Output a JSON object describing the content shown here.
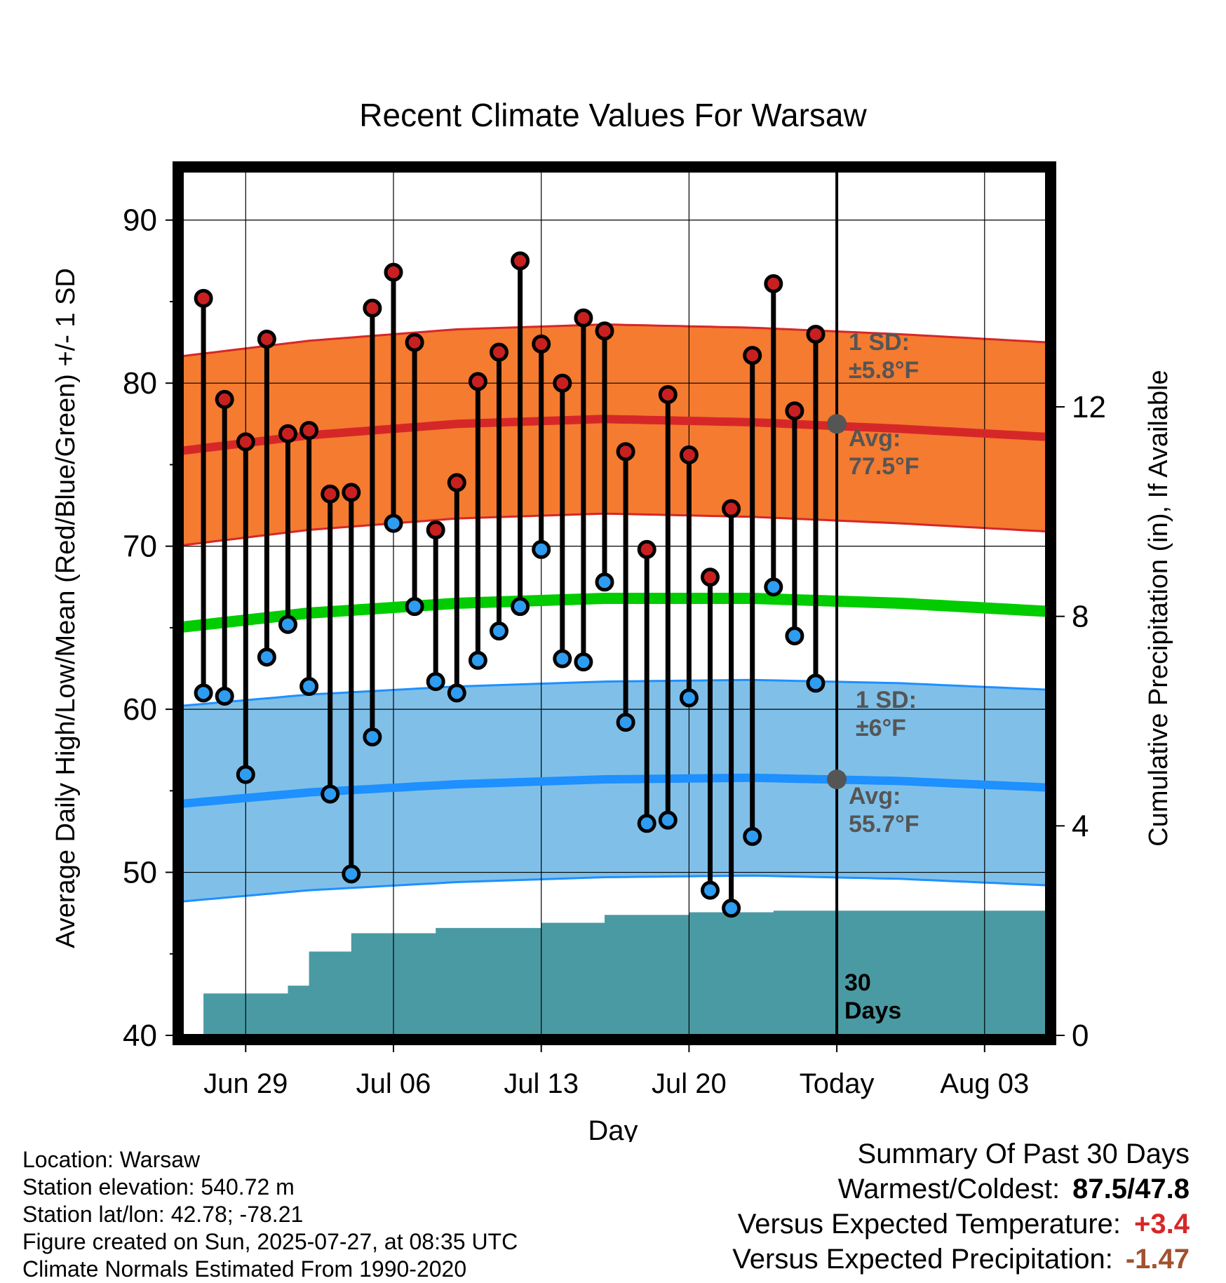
{
  "chart_data": {
    "type": "line",
    "title": "Recent Climate Values For Warsaw",
    "xlabel": "Day",
    "ylabel": "Average Daily High/Low/Mean (Red/Blue/Green) +/- 1 SD",
    "y2label": "Cumulative Precipitation (in), If Available",
    "ylim": [
      40,
      93
    ],
    "y2lim": [
      0,
      16.5
    ],
    "yticks": [
      "40",
      "50",
      "60",
      "70",
      "80",
      "90"
    ],
    "y2ticks": [
      "0",
      "4",
      "8",
      "12"
    ],
    "xticks": [
      "Jun 29",
      "Jul 06",
      "Jul 13",
      "Jul 20",
      "Today",
      "Aug 03"
    ],
    "x_start": "2025-06-26",
    "days": [
      "2025-06-27",
      "2025-06-28",
      "2025-06-29",
      "2025-06-30",
      "2025-07-01",
      "2025-07-02",
      "2025-07-03",
      "2025-07-04",
      "2025-07-05",
      "2025-07-06",
      "2025-07-07",
      "2025-07-08",
      "2025-07-09",
      "2025-07-10",
      "2025-07-11",
      "2025-07-12",
      "2025-07-13",
      "2025-07-14",
      "2025-07-15",
      "2025-07-16",
      "2025-07-17",
      "2025-07-18",
      "2025-07-19",
      "2025-07-20",
      "2025-07-21",
      "2025-07-22",
      "2025-07-23",
      "2025-07-24",
      "2025-07-25",
      "2025-07-26"
    ],
    "highs": [
      85.2,
      79.0,
      76.4,
      82.7,
      76.9,
      77.1,
      73.2,
      73.3,
      84.6,
      86.8,
      82.5,
      71.0,
      73.9,
      80.1,
      81.9,
      87.5,
      82.4,
      80.0,
      84.0,
      83.2,
      75.8,
      69.8,
      79.3,
      75.6,
      68.1,
      72.3,
      81.7,
      86.1,
      78.3,
      83.0
    ],
    "lows": [
      61.0,
      60.8,
      56.0,
      63.2,
      65.2,
      61.4,
      54.8,
      49.9,
      58.3,
      71.4,
      66.3,
      61.7,
      61.0,
      63.0,
      64.8,
      66.3,
      69.8,
      63.1,
      62.9,
      67.8,
      59.2,
      53.0,
      53.2,
      60.7,
      48.9,
      47.8,
      52.2,
      67.5,
      64.5,
      61.6
    ],
    "normals": {
      "days": [
        "2025-06-25",
        "2025-07-02",
        "2025-07-09",
        "2025-07-16",
        "2025-07-23",
        "2025-07-30",
        "2025-08-06"
      ],
      "high_avg": [
        75.7,
        76.8,
        77.5,
        77.8,
        77.6,
        77.2,
        76.7
      ],
      "low_avg": [
        54.1,
        54.9,
        55.4,
        55.7,
        55.8,
        55.6,
        55.2
      ],
      "mean_avg": [
        64.9,
        65.9,
        66.5,
        66.8,
        66.8,
        66.5,
        66.0
      ],
      "high_sd": 5.8,
      "low_sd": 6.0
    },
    "precip_cumulative": [
      0.0,
      0.8,
      0.8,
      0.8,
      0.8,
      0.95,
      1.6,
      1.6,
      1.95,
      1.95,
      1.95,
      1.95,
      2.05,
      2.05,
      2.05,
      2.05,
      2.05,
      2.15,
      2.15,
      2.15,
      2.3,
      2.3,
      2.3,
      2.3,
      2.35,
      2.35,
      2.35,
      2.35,
      2.38,
      2.38,
      2.38
    ],
    "annotations": {
      "high_sd_label": [
        "1 SD:",
        "±5.8°F"
      ],
      "high_avg_label": [
        "Avg:",
        "77.5°F"
      ],
      "low_sd_label": [
        "1 SD:",
        "±6°F"
      ],
      "low_avg_label": [
        "Avg:",
        "55.7°F"
      ],
      "precip_label": [
        "30",
        "Days"
      ]
    },
    "colors": {
      "high_band": "#f47b30",
      "high_line": "#d62728",
      "low_band": "#80c0e8",
      "low_line": "#1e90ff",
      "mean_line": "#00cc00",
      "precip": "#4a9aa3",
      "high_marker": "#c82020",
      "low_marker": "#2e9cf0"
    }
  },
  "footer": {
    "location": "Location: Warsaw",
    "elevation": "Station elevation: 540.72 m",
    "latlon": "Station lat/lon: 42.78; -78.21",
    "created": "Figure created on Sun, 2025-07-27, at 08:35 UTC",
    "normals": "Climate Normals Estimated From 1990-2020"
  },
  "summary": {
    "heading": "Summary Of Past 30 Days",
    "warmest_label": "Warmest/Coldest:",
    "warmest_value": "87.5/47.8",
    "temp_label": "Versus Expected Temperature:",
    "temp_value": "+3.4",
    "temp_color": "#d62728",
    "precip_label": "Versus Expected Precipitation:",
    "precip_value": "-1.47",
    "precip_color": "#a0522d"
  }
}
